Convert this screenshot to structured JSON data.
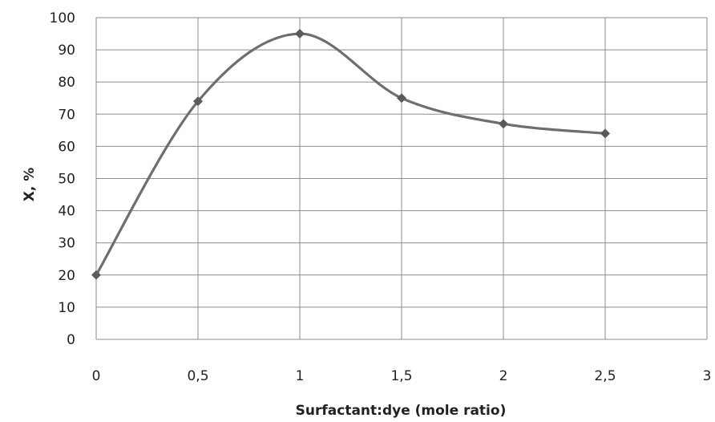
{
  "chart_data": {
    "type": "line",
    "title": "",
    "xlabel": "Surfactant:dye (mole ratio)",
    "ylabel": "X, %",
    "x_ticks": [
      "0",
      "0,5",
      "1",
      "1,5",
      "2",
      "2,5",
      "3"
    ],
    "y_ticks": [
      "0",
      "10",
      "20",
      "30",
      "40",
      "50",
      "60",
      "70",
      "80",
      "90",
      "100"
    ],
    "xlim": [
      0,
      3
    ],
    "ylim": [
      0,
      100
    ],
    "grid": true,
    "smooth": true,
    "series": [
      {
        "x": [
          0,
          0.5,
          1,
          1.5,
          2,
          2.5
        ],
        "y": [
          20,
          74,
          95,
          75,
          67,
          64
        ],
        "color": "#6e6e6e",
        "marker": "diamond"
      }
    ]
  }
}
